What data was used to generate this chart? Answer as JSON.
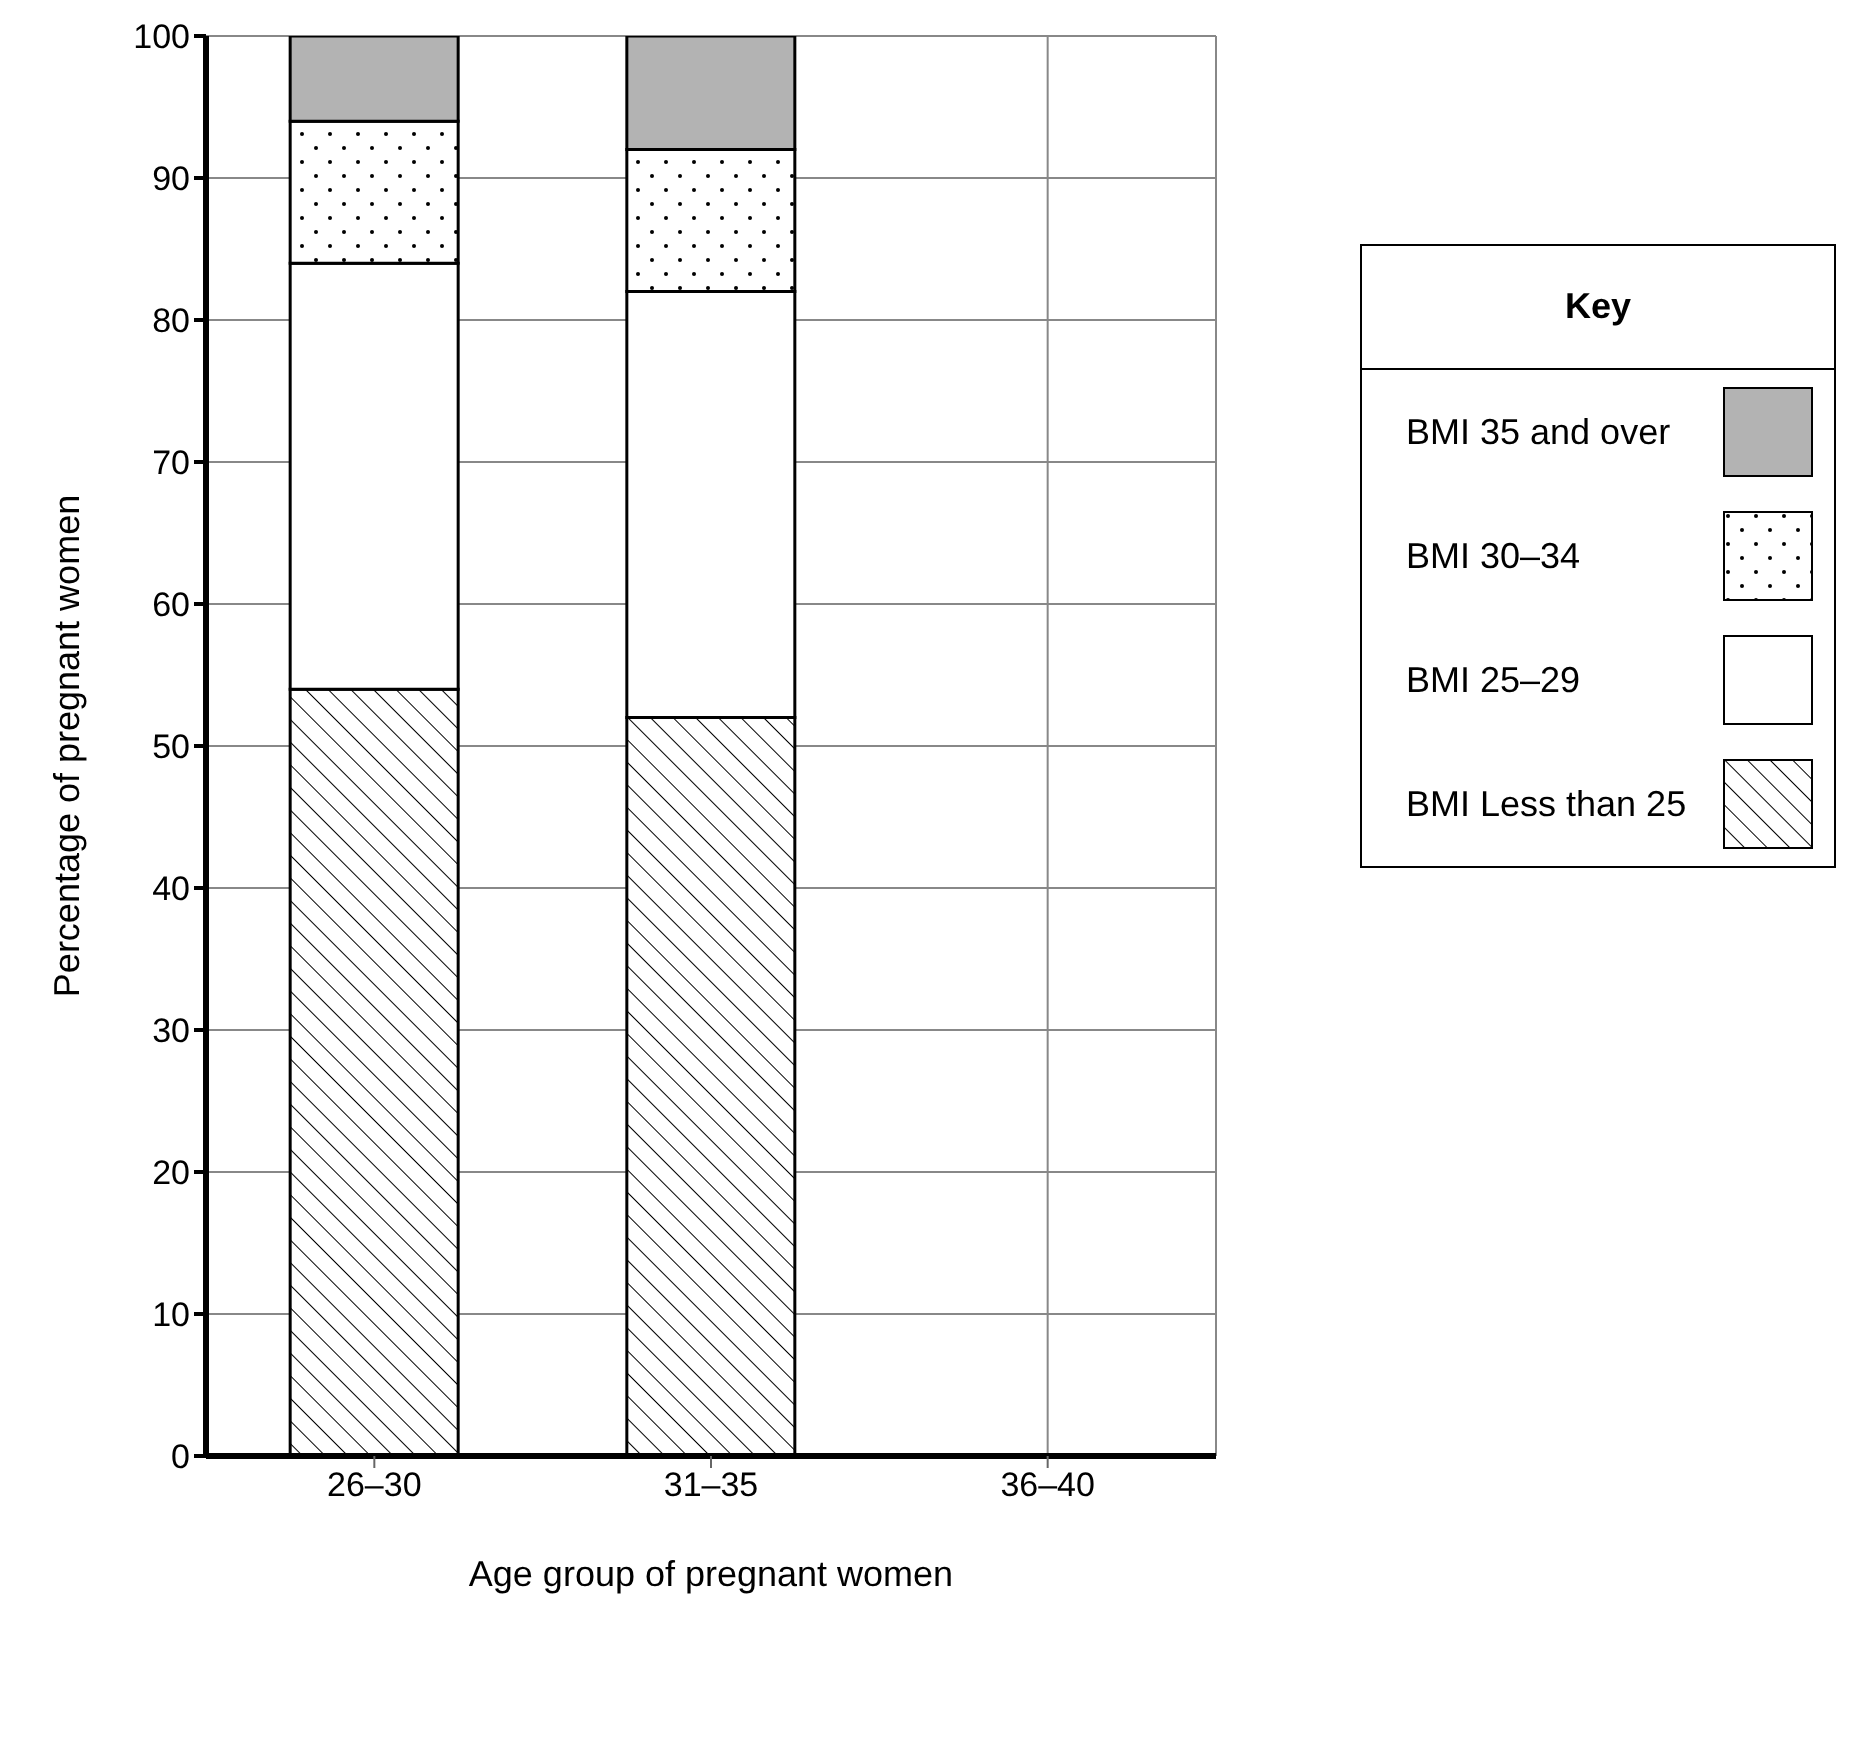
{
  "chart_data": {
    "type": "bar",
    "stacked": true,
    "xlabel": "Age group of pregnant women",
    "ylabel": "Percentage of pregnant women",
    "categories": [
      "26–30",
      "31–35",
      "36–40"
    ],
    "series": [
      {
        "name": "BMI Less than 25",
        "color": "#000000",
        "values": [
          54,
          52,
          null
        ]
      },
      {
        "name": "BMI 25–29",
        "color": "#ffffff",
        "values": [
          30,
          30,
          null
        ]
      },
      {
        "name": "BMI 30–34",
        "color": "#000000",
        "values": [
          10,
          10,
          null
        ]
      },
      {
        "name": "BMI 35 and over",
        "color": "#b3b3b3",
        "values": [
          6,
          8,
          null
        ]
      }
    ],
    "ylim": [
      0,
      100
    ],
    "yticks": [
      0,
      10,
      20,
      30,
      40,
      50,
      60,
      70,
      80,
      90,
      100
    ],
    "grid": true,
    "legend": "right",
    "legend_title": "Key"
  }
}
